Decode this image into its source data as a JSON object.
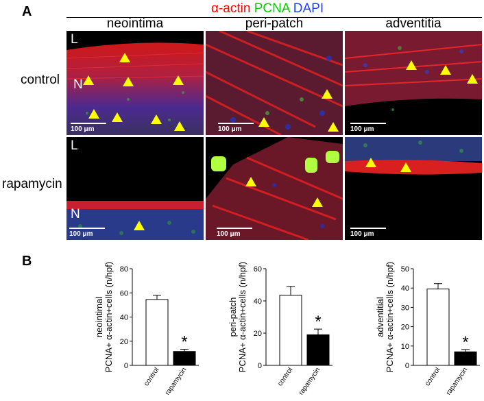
{
  "panel_a": {
    "letter": "A",
    "stain_title": {
      "actin": "α-actin",
      "pcna": "PCNA",
      "dapi": "DAPI"
    },
    "columns": [
      "neointima",
      "peri-patch",
      "adventitia"
    ],
    "rows": [
      "control",
      "rapamycin"
    ],
    "scale_label": "100 μm",
    "lumen_label": "L",
    "neointima_label": "N"
  },
  "panel_b": {
    "letter": "B"
  },
  "chart_data": [
    {
      "type": "bar",
      "categories": [
        "control",
        "rapamycin"
      ],
      "values": [
        54.5,
        11.5
      ],
      "errors": [
        3.5,
        1.8
      ],
      "ylabel_line1": "neointimal",
      "ylabel_line2": "PCNA+ α-actin+cells (n/hpf)",
      "ylim": [
        0,
        80
      ],
      "yticks": [
        0,
        20,
        40,
        60,
        80
      ],
      "significance": "*"
    },
    {
      "type": "bar",
      "categories": [
        "control",
        "rapamycin"
      ],
      "values": [
        43.5,
        19
      ],
      "errors": [
        5.5,
        3.5
      ],
      "ylabel_line1": "peri-patch",
      "ylabel_line2": "PCNA+ α-actin+cells (n/hpf)",
      "ylim": [
        0,
        60
      ],
      "yticks": [
        0,
        20,
        40,
        60
      ],
      "significance": "*"
    },
    {
      "type": "bar",
      "categories": [
        "control",
        "rapamycin"
      ],
      "values": [
        39.5,
        7
      ],
      "errors": [
        2.8,
        1.2
      ],
      "ylabel_line1": "adventitial",
      "ylabel_line2": "PCNA+ α-actin+cells (n/hpf)",
      "ylim": [
        0,
        50
      ],
      "yticks": [
        0,
        10,
        20,
        30,
        40,
        50
      ],
      "significance": "*"
    }
  ],
  "colors": {
    "actin": "#ff0000",
    "pcna": "#00cc00",
    "dapi": "#1f3fff",
    "arrow": "#ffff00"
  }
}
